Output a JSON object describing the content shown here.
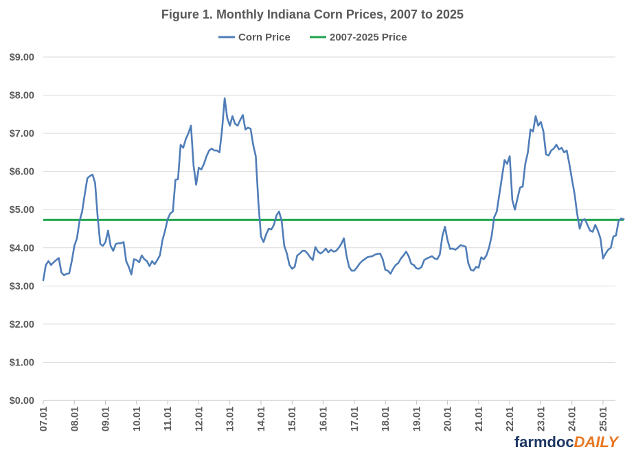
{
  "chart_data": {
    "type": "line",
    "title": "Figure 1.  Monthly Indiana Corn Prices, 2007 to 2025",
    "legend": {
      "position": "top"
    },
    "ylim": [
      0,
      9
    ],
    "yticks": [
      "$0.00",
      "$1.00",
      "$2.00",
      "$3.00",
      "$4.00",
      "$5.00",
      "$6.00",
      "$7.00",
      "$8.00",
      "$9.00"
    ],
    "xticks": [
      "07.01",
      "08.01",
      "09.01",
      "10.01",
      "11.01",
      "12.01",
      "13.01",
      "14.01",
      "15.01",
      "16.01",
      "17.01",
      "18.01",
      "19.01",
      "20.01",
      "21.01",
      "22.01",
      "23.01",
      "24.01",
      "25.01"
    ],
    "grid": {
      "horizontal": true,
      "vertical": false
    },
    "series": [
      {
        "name": "Corn Price",
        "color": "#4F7DB8",
        "values": [
          3.15,
          3.55,
          3.65,
          3.55,
          3.62,
          3.68,
          3.73,
          3.35,
          3.28,
          3.32,
          3.33,
          3.65,
          4.05,
          4.25,
          4.7,
          4.95,
          5.4,
          5.82,
          5.88,
          5.92,
          5.7,
          4.8,
          4.1,
          4.05,
          4.15,
          4.45,
          4.05,
          3.92,
          4.1,
          4.12,
          4.12,
          4.15,
          3.65,
          3.5,
          3.3,
          3.7,
          3.68,
          3.62,
          3.8,
          3.7,
          3.65,
          3.52,
          3.65,
          3.57,
          3.68,
          3.8,
          4.2,
          4.45,
          4.75,
          4.9,
          4.95,
          5.78,
          5.8,
          6.7,
          6.62,
          6.85,
          7.0,
          7.2,
          6.15,
          5.65,
          6.1,
          6.05,
          6.2,
          6.4,
          6.55,
          6.6,
          6.55,
          6.55,
          6.5,
          7.1,
          7.92,
          7.4,
          7.2,
          7.45,
          7.25,
          7.2,
          7.35,
          7.48,
          7.1,
          7.15,
          7.12,
          6.7,
          6.4,
          5.2,
          4.3,
          4.15,
          4.35,
          4.5,
          4.48,
          4.6,
          4.85,
          4.95,
          4.7,
          4.05,
          3.85,
          3.55,
          3.45,
          3.5,
          3.8,
          3.85,
          3.92,
          3.92,
          3.85,
          3.75,
          3.68,
          4.02,
          3.9,
          3.85,
          3.9,
          3.98,
          3.88,
          3.95,
          3.9,
          3.92,
          4.0,
          4.1,
          4.25,
          3.8,
          3.5,
          3.4,
          3.4,
          3.48,
          3.58,
          3.65,
          3.7,
          3.75,
          3.77,
          3.78,
          3.82,
          3.84,
          3.85,
          3.7,
          3.42,
          3.4,
          3.32,
          3.45,
          3.55,
          3.6,
          3.72,
          3.8,
          3.9,
          3.78,
          3.58,
          3.55,
          3.46,
          3.45,
          3.5,
          3.68,
          3.72,
          3.75,
          3.78,
          3.72,
          3.7,
          3.82,
          4.3,
          4.55,
          4.2,
          3.97,
          3.98,
          3.95,
          4.0,
          4.07,
          4.05,
          4.03,
          3.6,
          3.42,
          3.4,
          3.5,
          3.48,
          3.75,
          3.7,
          3.8,
          4.0,
          4.3,
          4.8,
          4.95,
          5.4,
          5.85,
          6.3,
          6.2,
          6.4,
          5.25,
          5.0,
          5.3,
          5.58,
          5.6,
          6.2,
          6.5,
          7.1,
          7.05,
          7.45,
          7.2,
          7.3,
          7.05,
          6.45,
          6.42,
          6.55,
          6.6,
          6.7,
          6.58,
          6.62,
          6.5,
          6.55,
          6.2,
          5.8,
          5.42,
          4.9,
          4.5,
          4.72,
          4.75,
          4.6,
          4.45,
          4.42,
          4.6,
          4.45,
          4.25,
          3.72,
          3.85,
          3.95,
          4.0,
          4.3,
          4.32,
          4.7,
          4.77,
          4.75
        ]
      },
      {
        "name": "2007-2025 Price",
        "color": "#1AA34A",
        "values": [
          4.73
        ]
      }
    ]
  },
  "branding": {
    "text_dark": "farmdoc",
    "text_accent": "DAILY"
  }
}
